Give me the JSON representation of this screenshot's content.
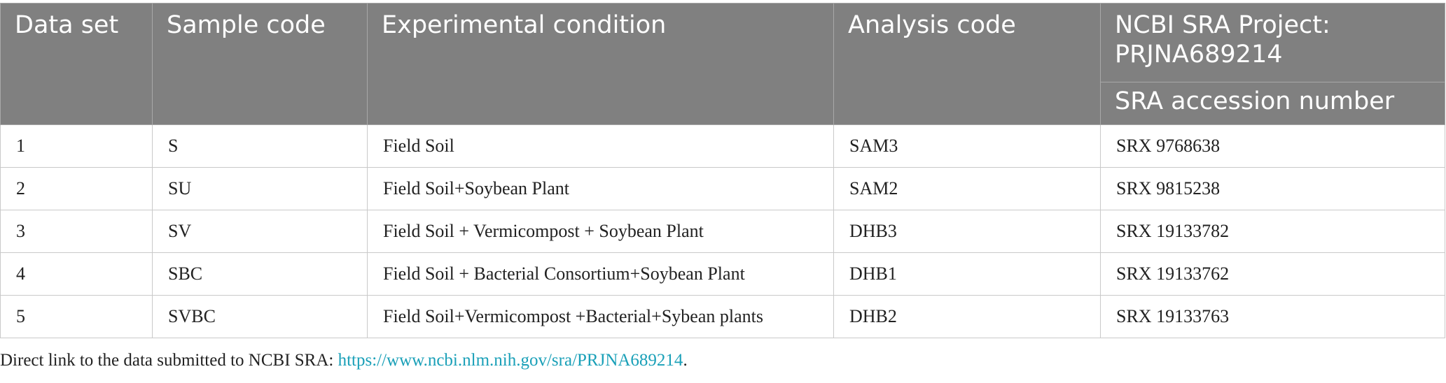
{
  "table": {
    "headers": [
      "Data set",
      "Sample code",
      "Experimental condition",
      "Analysis code",
      "NCBI SRA Project: PRJNA689214"
    ],
    "subheader": "SRA accession number",
    "rows": [
      [
        "1",
        "S",
        "Field Soil",
        "SAM3",
        "SRX 9768638"
      ],
      [
        "2",
        "SU",
        "Field Soil+Soybean Plant",
        "SAM2",
        "SRX 9815238"
      ],
      [
        "3",
        "SV",
        "Field Soil + Vermicompost + Soybean Plant",
        "DHB3",
        "SRX 19133782"
      ],
      [
        "4",
        "SBC",
        "Field Soil + Bacterial Consortium+Soybean Plant",
        "DHB1",
        "SRX 19133762"
      ],
      [
        "5",
        "SVBC",
        "Field Soil+Vermicompost +Bacterial+Sybean plants",
        "DHB2",
        "SRX 19133763"
      ]
    ]
  },
  "footnote": {
    "text": "Direct link to the data submitted to NCBI SRA: ",
    "link": "https://www.ncbi.nlm.nih.gov/sra/PRJNA689214",
    "end": "."
  }
}
